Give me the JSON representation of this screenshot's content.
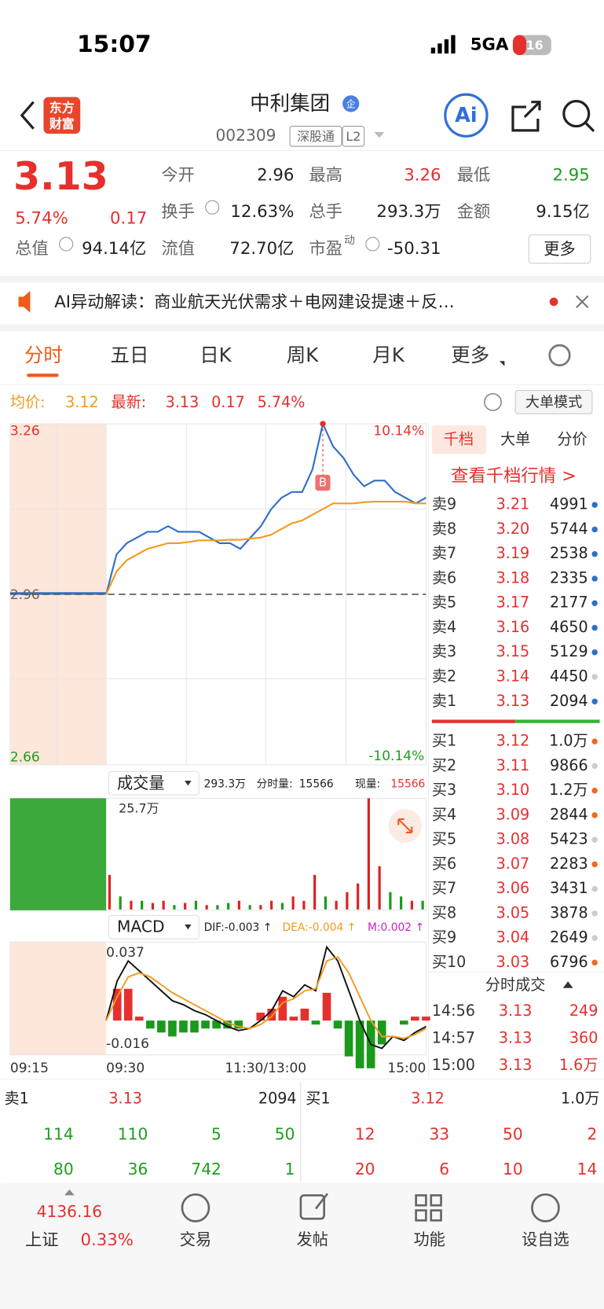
{
  "status": {
    "time": "15:07",
    "network": "5GA",
    "battery": "16"
  },
  "header": {
    "logo": [
      "东方",
      "财富"
    ],
    "name": "中利集团",
    "badge": "企",
    "code": "002309",
    "tags": [
      "深股通",
      "L2"
    ],
    "ai": "Ai"
  },
  "quote": {
    "price": "3.13",
    "pct": "5.74%",
    "change": "0.17",
    "more": "更多",
    "fields": [
      {
        "label": "今开",
        "value": "2.96"
      },
      {
        "label": "最高",
        "value": "3.26"
      },
      {
        "label": "最低",
        "value": "2.95"
      },
      {
        "label": "换手",
        "value": "12.63%"
      },
      {
        "label": "总手",
        "value": "293.3万"
      },
      {
        "label": "金额",
        "value": "9.15亿"
      },
      {
        "label": "总值",
        "value": "94.14亿"
      },
      {
        "label": "流值",
        "value": "72.70亿"
      },
      {
        "label": "市盈",
        "sup": "动",
        "value": "-50.31"
      }
    ]
  },
  "news": "AI异动解读：商业航天光伏需求＋电网建设提速＋反…",
  "tabs": [
    "分时",
    "五日",
    "日K",
    "周K",
    "月K",
    "更多"
  ],
  "summary": {
    "avg_label": "均价:",
    "avg": "3.12",
    "latest_label": "最新:",
    "latest": "3.13",
    "change": "0.17",
    "pct": "5.74%",
    "mode": "大单模式"
  },
  "chart": {
    "type": "line",
    "ylim": [
      2.66,
      3.26
    ],
    "yticks": [
      3.26,
      2.96,
      2.66
    ],
    "y2lim": [
      -10.14,
      10.14
    ],
    "y2ticks": [
      {
        "value": 10.14,
        "label": "10.14%"
      },
      {
        "value": -10.14,
        "label": "-10.14%"
      }
    ],
    "marker": "B",
    "xticks": [
      "09:15",
      "09:30",
      "11:30/13:00",
      "15:00"
    ],
    "series": [
      {
        "name": "最新",
        "color": "#2f6fc9",
        "values": [
          2.96,
          3.03,
          3.05,
          3.06,
          3.07,
          3.07,
          3.08,
          3.07,
          3.07,
          3.07,
          3.06,
          3.05,
          3.05,
          3.04,
          3.06,
          3.08,
          3.11,
          3.13,
          3.14,
          3.14,
          3.18,
          3.26,
          3.22,
          3.2,
          3.17,
          3.15,
          3.16,
          3.16,
          3.14,
          3.13,
          3.12,
          3.13
        ]
      },
      {
        "name": "均价",
        "color": "#f39a1e",
        "values": [
          2.96,
          3.0,
          3.02,
          3.03,
          3.04,
          3.045,
          3.05,
          3.05,
          3.052,
          3.055,
          3.055,
          3.055,
          3.056,
          3.056,
          3.058,
          3.06,
          3.065,
          3.075,
          3.085,
          3.09,
          3.1,
          3.11,
          3.12,
          3.12,
          3.12,
          3.122,
          3.123,
          3.123,
          3.123,
          3.123,
          3.12,
          3.12
        ]
      }
    ]
  },
  "volume": {
    "type": "bar",
    "selector": "成交量",
    "total": "293.3万",
    "period_label": "分时量:",
    "period": "15566",
    "now_label": "现量:",
    "now": "15566",
    "ylim": [
      0,
      25.7
    ],
    "yticks": [
      {
        "value": 25.7,
        "label": "25.7万"
      }
    ],
    "values": [
      8,
      3,
      2,
      2,
      1.5,
      2,
      1,
      1.5,
      2,
      1,
      1,
      1.5,
      2,
      1,
      1,
      2,
      1.5,
      3,
      2,
      8,
      3,
      2,
      4,
      6,
      25.7,
      10,
      4,
      3,
      2,
      2
    ],
    "colors": [
      "#e02020",
      "#1a9a1a",
      "#e02020",
      "#1a9a1a",
      "#e02020",
      "#e02020",
      "#1a9a1a",
      "#e02020",
      "#1a9a1a",
      "#e02020",
      "#1a9a1a",
      "#1a9a1a",
      "#e02020",
      "#1a9a1a",
      "#e02020",
      "#e02020",
      "#1a9a1a",
      "#e02020",
      "#e02020",
      "#e02020",
      "#1a9a1a",
      "#e02020",
      "#e02020",
      "#e02020",
      "#e02020",
      "#e02020",
      "#1a9a1a",
      "#1a9a1a",
      "#e02020",
      "#1a9a1a"
    ]
  },
  "macd": {
    "type": "line",
    "selector": "MACD",
    "dif": "DIF:-0.003 ↑",
    "dea": "DEA:-0.004 ↑",
    "m": "M:0.002 ↑",
    "ylim": [
      -0.016,
      0.037
    ],
    "yticks": [
      0.037,
      -0.016
    ],
    "series": [
      {
        "name": "DIF",
        "color": "#111111",
        "values": [
          0,
          0.02,
          0.03,
          0.025,
          0.02,
          0.015,
          0.01,
          0.008,
          0.005,
          0.003,
          0,
          -0.003,
          -0.005,
          -0.004,
          0,
          0.005,
          0.015,
          0.012,
          0.018,
          0.015,
          0.037,
          0.03,
          0.015,
          0,
          -0.012,
          -0.014,
          -0.008,
          -0.01,
          -0.006,
          -0.003
        ]
      },
      {
        "name": "DEA",
        "color": "#f39a1e",
        "values": [
          0,
          0.012,
          0.022,
          0.024,
          0.022,
          0.018,
          0.014,
          0.011,
          0.008,
          0.005,
          0.002,
          -0.001,
          -0.003,
          -0.004,
          -0.002,
          0.002,
          0.009,
          0.011,
          0.015,
          0.016,
          0.03,
          0.032,
          0.024,
          0.012,
          0,
          -0.008,
          -0.008,
          -0.009,
          -0.007,
          -0.004
        ]
      }
    ],
    "histogram": [
      0,
      0.016,
      0.016,
      0.002,
      -0.004,
      -0.006,
      -0.008,
      -0.006,
      -0.006,
      -0.004,
      -0.004,
      -0.004,
      -0.004,
      0,
      0.004,
      0.006,
      0.012,
      0.002,
      0.006,
      -0.002,
      0.014,
      -0.004,
      -0.018,
      -0.024,
      -0.024,
      -0.012,
      0,
      -0.002,
      0.002,
      0.002
    ]
  },
  "book": {
    "tabs": [
      "千档",
      "大单",
      "分价"
    ],
    "link": "查看千档行情 >",
    "asks": [
      [
        "卖9",
        "3.21",
        "4991",
        "#2f6fc9"
      ],
      [
        "卖8",
        "3.20",
        "5744",
        "#2f6fc9"
      ],
      [
        "卖7",
        "3.19",
        "2538",
        "#2f6fc9"
      ],
      [
        "卖6",
        "3.18",
        "2335",
        "#2f6fc9"
      ],
      [
        "卖5",
        "3.17",
        "2177",
        "#2f6fc9"
      ],
      [
        "卖4",
        "3.16",
        "4650",
        "#2f6fc9"
      ],
      [
        "卖3",
        "3.15",
        "5129",
        "#2f6fc9"
      ],
      [
        "卖2",
        "3.14",
        "4450",
        "#cccccc"
      ],
      [
        "卖1",
        "3.13",
        "2094",
        "#2f6fc9"
      ]
    ],
    "bids": [
      [
        "买1",
        "3.12",
        "1.0万",
        "#f06a1e"
      ],
      [
        "买2",
        "3.11",
        "9866",
        "#cccccc"
      ],
      [
        "买3",
        "3.10",
        "1.2万",
        "#f06a1e"
      ],
      [
        "买4",
        "3.09",
        "2844",
        "#f06a1e"
      ],
      [
        "买5",
        "3.08",
        "5423",
        "#cccccc"
      ],
      [
        "买6",
        "3.07",
        "2283",
        "#f06a1e"
      ],
      [
        "买7",
        "3.06",
        "3431",
        "#cccccc"
      ],
      [
        "买8",
        "3.05",
        "3878",
        "#cccccc"
      ],
      [
        "买9",
        "3.04",
        "2649",
        "#cccccc"
      ],
      [
        "买10",
        "3.03",
        "6796",
        "#f06a1e"
      ]
    ],
    "trades_title": "分时成交",
    "trades": [
      [
        "14:56",
        "3.13",
        "249"
      ],
      [
        "14:57",
        "3.13",
        "360"
      ],
      [
        "15:00",
        "3.13",
        "1.6万"
      ]
    ]
  },
  "bottom": {
    "ask": [
      "卖1",
      "3.13",
      "2094"
    ],
    "bid": [
      "买1",
      "3.12",
      "1.0万"
    ],
    "ask_rows": [
      [
        114,
        110,
        5,
        50
      ],
      [
        80,
        36,
        742,
        1
      ]
    ],
    "bid_rows": [
      [
        12,
        33,
        50,
        2
      ],
      [
        20,
        6,
        10,
        14
      ]
    ]
  },
  "footer": {
    "index": "4136.16",
    "index_name": "上证",
    "index_pct": "0.33%",
    "nav": [
      "交易",
      "发帖",
      "功能",
      "设自选"
    ]
  }
}
